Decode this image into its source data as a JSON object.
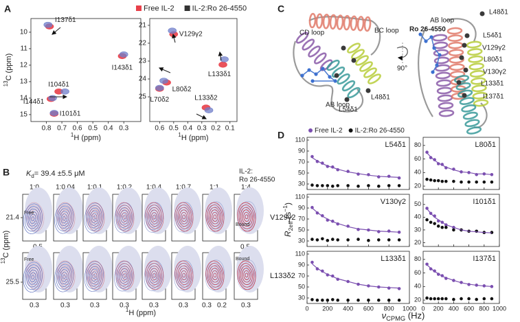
{
  "panel_labels": [
    "A",
    "B",
    "C",
    "D"
  ],
  "chart_data": [
    {
      "type": "scatter",
      "xlabel": {
        "sup": "1",
        "main": "H (ppm)"
      },
      "ylabel": {
        "sup": "13",
        "main": "C (ppm)"
      },
      "xlim": [
        0.9,
        0.19
      ],
      "xticks": [
        0.8,
        0.7,
        0.6,
        0.5,
        0.4,
        0.3
      ],
      "ylim": [
        15.42,
        9.17
      ],
      "yticks": [
        10,
        11,
        12,
        13,
        14,
        15
      ],
      "labels": [
        "I137δ1",
        "I143δ1",
        "I104δ1",
        "I144δ1",
        "I101δ1"
      ],
      "series": [
        {
          "name": "Free IL-2",
          "color": "#e8404a",
          "x": [
            0.78,
            0.31,
            0.72,
            0.77,
            0.75
          ],
          "values": [
            9.65,
            11.45,
            13.6,
            14.05,
            14.95
          ]
        },
        {
          "name": "IL-2:Ro 26-4550",
          "color": "#333333",
          "marker_color": "#6f7ec9",
          "x": [
            0.79,
            0.3,
            0.68,
            0.76,
            0.75
          ],
          "values": [
            9.55,
            11.35,
            13.6,
            14.0,
            14.9
          ]
        }
      ]
    },
    {
      "type": "scatter",
      "xlabel": {
        "sup": "1",
        "main": "H (ppm)"
      },
      "xlim": [
        0.67,
        0.05
      ],
      "xticks": [
        0.6,
        0.5,
        0.4,
        0.3,
        0.2,
        0.1
      ],
      "ylim": [
        26.38,
        20.62
      ],
      "yticks": [
        21,
        22,
        23,
        24,
        25
      ],
      "labels": [
        "V129γ2",
        "L133δ1",
        "L80δ2",
        "L70δ2",
        "L133δ2"
      ],
      "series": [
        {
          "color": "#e8404a",
          "x": [
            0.5,
            0.15,
            0.55,
            0.6,
            0.27
          ],
          "values": [
            21.5,
            23.2,
            24.2,
            24.55,
            25.6
          ]
        },
        {
          "color": "#333333",
          "marker_color": "#6f7ec9",
          "x": [
            0.51,
            0.14,
            0.57,
            0.6,
            0.25
          ],
          "values": [
            21.3,
            22.9,
            24.1,
            24.5,
            25.75
          ]
        }
      ]
    },
    {
      "type": "scatter",
      "title": "L54δ1",
      "xlim": [
        0,
        1000
      ],
      "xticks": [
        0,
        200,
        400,
        600,
        800,
        1000
      ],
      "ylim": [
        20,
        115
      ],
      "yticks": [
        30,
        50,
        70,
        90,
        110
      ],
      "x": [
        50,
        100,
        150,
        200,
        250,
        300,
        400,
        500,
        600,
        700,
        800,
        900
      ],
      "series": [
        {
          "color": "#7b4fb0",
          "values": [
            80,
            71,
            68,
            62,
            61,
            56,
            53,
            48,
            47,
            43,
            44,
            41
          ]
        },
        {
          "color": "#111111",
          "values": [
            28,
            27,
            27,
            27,
            26,
            27,
            27,
            26,
            27,
            26,
            27,
            27
          ]
        },
        {
          "color": "#7b4fb0",
          "style": "line",
          "values": [
            78,
            72,
            67,
            63,
            60,
            57,
            52,
            49,
            46,
            44,
            43,
            42
          ]
        }
      ]
    },
    {
      "type": "scatter",
      "title": "L80δ1",
      "xlim": [
        0,
        1000
      ],
      "xticks": [
        0,
        200,
        400,
        600,
        800,
        1000
      ],
      "ylim": [
        15,
        92
      ],
      "yticks": [
        20,
        40,
        60,
        80
      ],
      "x": [
        50,
        100,
        150,
        200,
        250,
        300,
        400,
        500,
        600,
        700,
        800,
        900
      ],
      "series": [
        {
          "color": "#7b4fb0",
          "values": [
            70,
            62,
            59,
            53,
            52,
            47,
            45,
            41,
            40,
            37,
            38,
            37
          ]
        },
        {
          "color": "#111111",
          "values": [
            30,
            29,
            28,
            28,
            27,
            27,
            27,
            26,
            26,
            26,
            26,
            26
          ]
        },
        {
          "color": "#7b4fb0",
          "style": "line",
          "values": [
            69,
            63,
            58,
            54,
            51,
            48,
            44,
            41,
            40,
            38,
            38,
            37
          ]
        }
      ]
    },
    {
      "type": "scatter",
      "title": "V130γ2",
      "xlim": [
        0,
        1000
      ],
      "xticks": [
        0,
        200,
        400,
        600,
        800,
        1000
      ],
      "ylim": [
        20,
        115
      ],
      "yticks": [
        30,
        50,
        70,
        90,
        110
      ],
      "x": [
        50,
        100,
        150,
        200,
        250,
        300,
        400,
        500,
        600,
        700,
        800,
        900
      ],
      "series": [
        {
          "color": "#7b4fb0",
          "values": [
            91,
            81,
            76,
            68,
            66,
            61,
            57,
            51,
            50,
            47,
            48,
            46
          ]
        },
        {
          "color": "#111111",
          "values": [
            33,
            32,
            34,
            31,
            33,
            32,
            32,
            33,
            31,
            32,
            32,
            32
          ]
        },
        {
          "color": "#7b4fb0",
          "style": "line",
          "values": [
            90,
            82,
            75,
            70,
            65,
            62,
            56,
            52,
            50,
            48,
            47,
            46
          ]
        }
      ]
    },
    {
      "type": "scatter",
      "title": "I101δ1",
      "xlim": [
        0,
        1000
      ],
      "xticks": [
        0,
        200,
        400,
        600,
        800,
        1000
      ],
      "ylim": [
        17,
        58
      ],
      "yticks": [
        20,
        30,
        40,
        50
      ],
      "x": [
        50,
        100,
        150,
        200,
        250,
        300,
        400,
        500,
        600,
        700,
        800,
        900
      ],
      "series": [
        {
          "color": "#7b4fb0",
          "values": [
            47,
            43,
            41,
            37,
            36,
            34,
            32,
            30,
            29,
            29,
            28,
            28
          ]
        },
        {
          "color": "#111111",
          "values": [
            38,
            36,
            35,
            33,
            32,
            32,
            30,
            30,
            29,
            29,
            28,
            28
          ]
        },
        {
          "color": "#7b4fb0",
          "style": "line",
          "values": [
            46.7,
            43,
            40,
            38,
            36,
            34,
            32,
            30,
            29,
            28.5,
            28,
            27.7
          ]
        }
      ]
    },
    {
      "type": "scatter",
      "title": "L133δ1",
      "xlim": [
        0,
        1000
      ],
      "xticks": [
        0,
        200,
        400,
        600,
        800,
        1000
      ],
      "ylim": [
        20,
        115
      ],
      "yticks": [
        30,
        50,
        70,
        90,
        110
      ],
      "x": [
        50,
        100,
        150,
        200,
        250,
        300,
        400,
        500,
        600,
        700,
        800,
        900
      ],
      "series": [
        {
          "color": "#7b4fb0",
          "values": [
            95,
            83,
            79,
            72,
            70,
            64,
            60,
            55,
            52,
            50,
            48,
            47
          ]
        },
        {
          "color": "#111111",
          "values": [
            27,
            26,
            26,
            26,
            27,
            26,
            26,
            26,
            26,
            26,
            26,
            26
          ]
        },
        {
          "color": "#7b4fb0",
          "style": "line",
          "values": [
            92,
            84,
            78,
            73,
            69,
            65,
            60,
            55,
            52,
            50,
            49,
            48
          ]
        }
      ]
    },
    {
      "type": "scatter",
      "title": "I137δ1",
      "xlim": [
        0,
        1000
      ],
      "xticks": [
        0,
        200,
        400,
        600,
        800,
        1000
      ],
      "ylim": [
        15,
        92
      ],
      "yticks": [
        20,
        40,
        60,
        80
      ],
      "x": [
        50,
        100,
        150,
        200,
        250,
        300,
        400,
        500,
        600,
        700,
        800,
        900
      ],
      "series": [
        {
          "color": "#7b4fb0",
          "values": [
            73,
            66,
            63,
            58,
            56,
            52,
            49,
            46,
            43,
            42,
            41,
            40
          ]
        },
        {
          "color": "#111111",
          "values": [
            23,
            22,
            22,
            22,
            22,
            22,
            21,
            22,
            22,
            21,
            22,
            22
          ]
        },
        {
          "color": "#7b4fb0",
          "style": "line",
          "values": [
            72,
            67,
            62,
            59,
            55,
            53,
            49,
            45.6,
            43.4,
            41.9,
            40.8,
            40
          ]
        }
      ]
    }
  ],
  "titration": {
    "kd": {
      "symbol": "K",
      "sub": "d",
      "main": "= 39.4 ±5.5 μM"
    },
    "complex_label": [
      "IL-2:",
      "Ro 26-4550"
    ],
    "ratios": [
      "1:0",
      "1:0.04",
      "1:0.1",
      "1:0.2",
      "1:0.4",
      "1:0.7",
      "1:1",
      "1:4"
    ],
    "xlabel": {
      "sup": "1",
      "main": "H (ppm)"
    },
    "ylabel": {
      "sup": "13",
      "main": "C (ppm)"
    },
    "rows": [
      {
        "peak": "V129γ2",
        "ytick": "21.4",
        "free_tag": "Free",
        "bound_tag": "Bound",
        "xticks": [
          [
            "0.5"
          ],
          [],
          [],
          [],
          [],
          [],
          [],
          [
            "0.5"
          ]
        ]
      },
      {
        "peak": "L133δ2",
        "ytick": "25.5",
        "free_tag": "Free",
        "bound_tag": "Bound",
        "xticks": [
          [
            "0.3"
          ],
          [
            "0.3"
          ],
          [
            "0.3"
          ],
          [
            "0.3"
          ],
          [
            "0.3"
          ],
          [
            "0.3"
          ],
          [
            "0.3",
            "0.2"
          ],
          [
            "0.3"
          ]
        ]
      }
    ]
  },
  "structure": {
    "labels": [
      "CD loop",
      "BC loop",
      "AB loop",
      "L48δ1",
      "L54δ1",
      "Ro 26-4550",
      "AB loop",
      "90°",
      "L48δ1",
      "L54δ1",
      "V129γ2",
      "L80δ1",
      "V130γ2",
      "L133δ1",
      "I137δ1"
    ]
  },
  "relaxation": {
    "legend": [
      {
        "name": "Free IL-2",
        "color": "#7b4fb0"
      },
      {
        "name": "IL-2:Ro 26-4550",
        "color": "#111111"
      }
    ],
    "xlabel": {
      "symbol": "ν",
      "sub": "CPMG",
      "main": " (Hz)"
    },
    "ylabel": {
      "symbol": "R",
      "sub": "2eff",
      "main": " (s",
      "sup": "−1",
      "close": ")"
    }
  }
}
